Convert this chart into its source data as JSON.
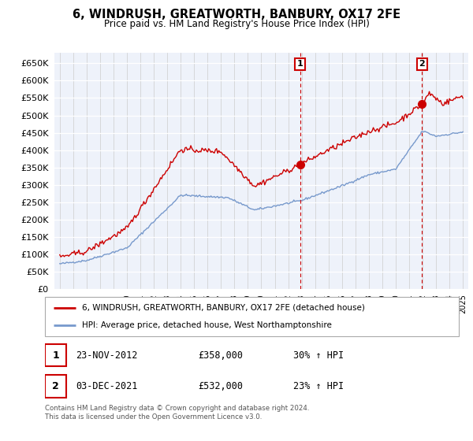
{
  "title": "6, WINDRUSH, GREATWORTH, BANBURY, OX17 2FE",
  "subtitle": "Price paid vs. HM Land Registry's House Price Index (HPI)",
  "legend_line1": "6, WINDRUSH, GREATWORTH, BANBURY, OX17 2FE (detached house)",
  "legend_line2": "HPI: Average price, detached house, West Northamptonshire",
  "sale1_date": "23-NOV-2012",
  "sale1_price": 358000,
  "sale1_pct": "30% ↑ HPI",
  "sale2_date": "03-DEC-2021",
  "sale2_price": 532000,
  "sale2_pct": "23% ↑ HPI",
  "footer": "Contains HM Land Registry data © Crown copyright and database right 2024.\nThis data is licensed under the Open Government Licence v3.0.",
  "ylim": [
    0,
    680000
  ],
  "yticks": [
    0,
    50000,
    100000,
    150000,
    200000,
    250000,
    300000,
    350000,
    400000,
    450000,
    500000,
    550000,
    600000,
    650000
  ],
  "red_color": "#cc0000",
  "blue_color": "#7799cc",
  "plot_bg_color": "#eef2fa",
  "sale1_t": 2012.875,
  "sale2_t": 2021.958,
  "xlim_left": 1994.6,
  "xlim_right": 2025.4
}
